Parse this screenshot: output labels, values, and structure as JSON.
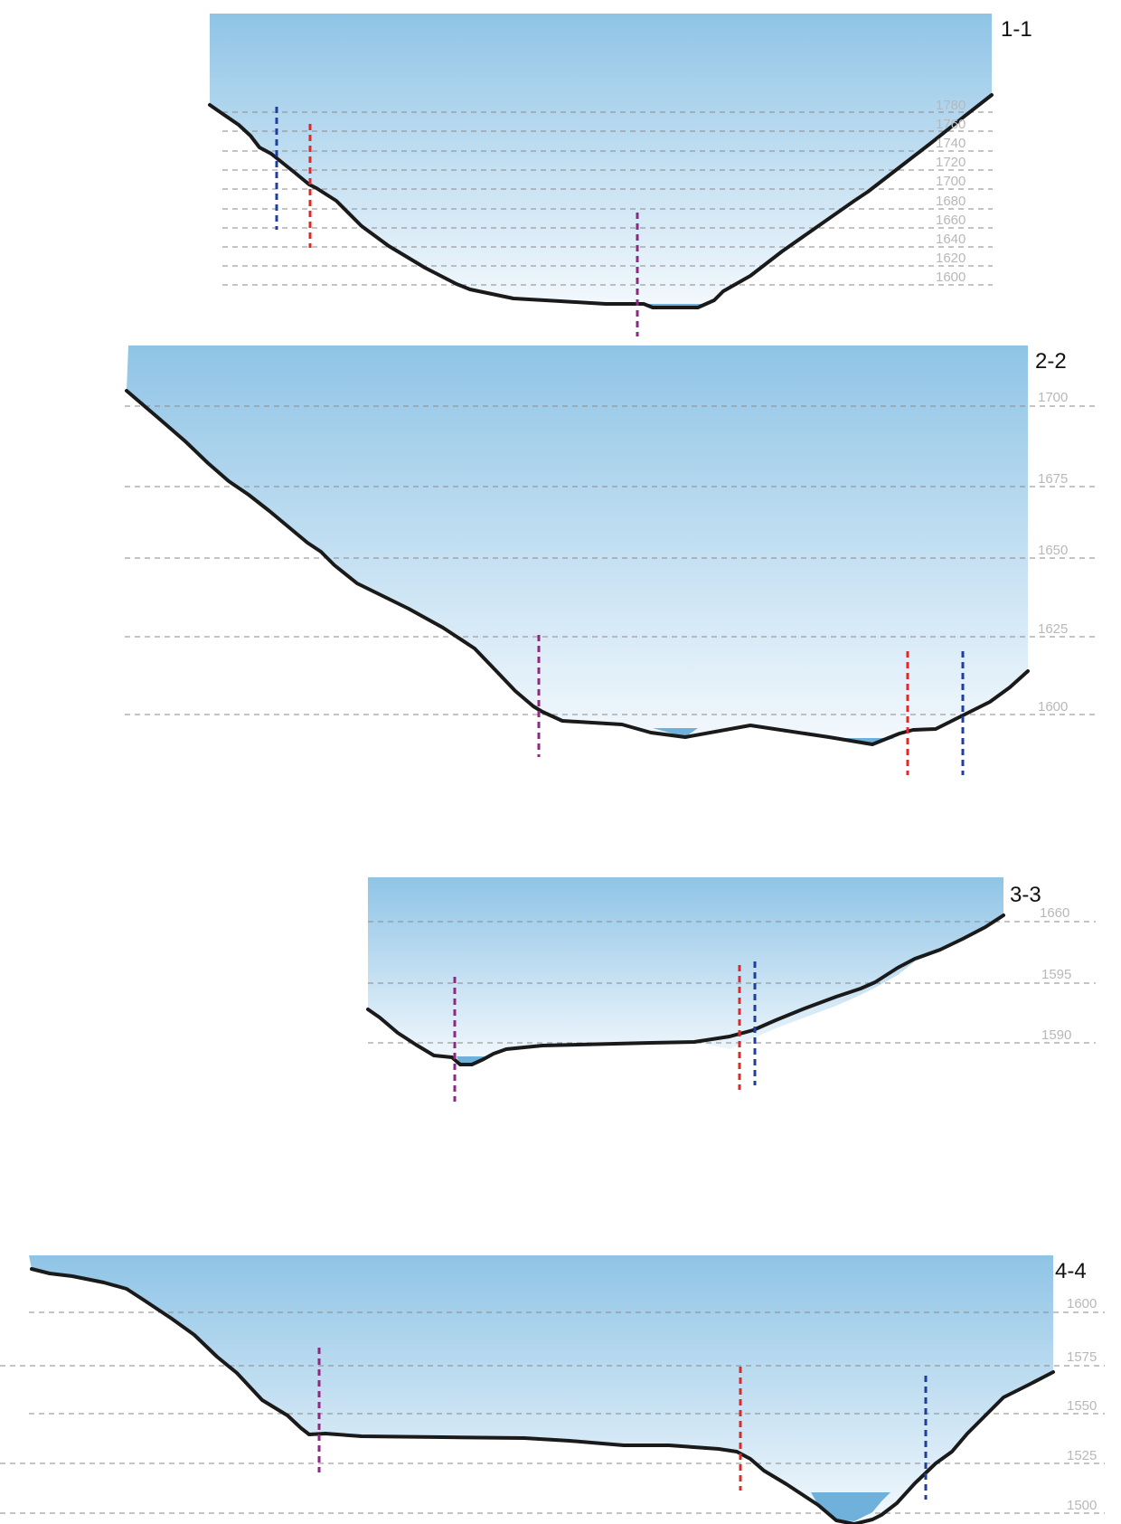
{
  "colors": {
    "fill_top": "#8fc4e6",
    "fill_bottom": "#f4f9fd",
    "terrain": "#1a1a1a",
    "grid": "#8a8a8a",
    "water": "#6fb1db",
    "marker_blue": "#1f3f9e",
    "marker_red": "#e02828",
    "marker_purple": "#8a2a80",
    "elevation_label": "#b8b8b8"
  },
  "sections": [
    {
      "id": "1-1",
      "label": "1-1",
      "elevations": [
        "1780",
        "1760",
        "1740",
        "1720",
        "1700",
        "1680",
        "1660",
        "1640",
        "1620",
        "1600"
      ]
    },
    {
      "id": "2-2",
      "label": "2-2",
      "elevations": [
        "1700",
        "1675",
        "1650",
        "1625",
        "1600"
      ]
    },
    {
      "id": "3-3",
      "label": "3-3",
      "elevations": [
        "1660",
        "1595",
        "1590"
      ]
    },
    {
      "id": "4-4",
      "label": "4-4",
      "elevations": [
        "1600",
        "1575",
        "1550",
        "1525",
        "1500"
      ]
    }
  ]
}
